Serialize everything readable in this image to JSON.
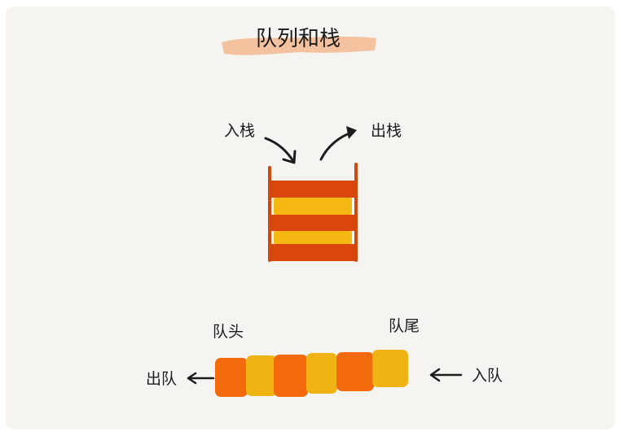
{
  "title": "队列和栈",
  "stack": {
    "push_label": "入栈",
    "pop_label": "出栈",
    "layers": [
      "red",
      "yellow",
      "red",
      "yellow",
      "red"
    ]
  },
  "queue": {
    "head_label": "队头",
    "tail_label": "队尾",
    "dequeue_label": "出队",
    "enqueue_label": "入队",
    "blocks": [
      "orange",
      "yellow",
      "orange",
      "yellow",
      "orange",
      "yellow"
    ]
  },
  "colors": {
    "stack_red": "#d9460e",
    "stack_yellow": "#f5b712",
    "queue_orange": "#f26a0c",
    "queue_yellow": "#f0b314",
    "title_highlight": "#f3b88f",
    "outline": "#d04a10",
    "ink": "#1c1c1c"
  }
}
